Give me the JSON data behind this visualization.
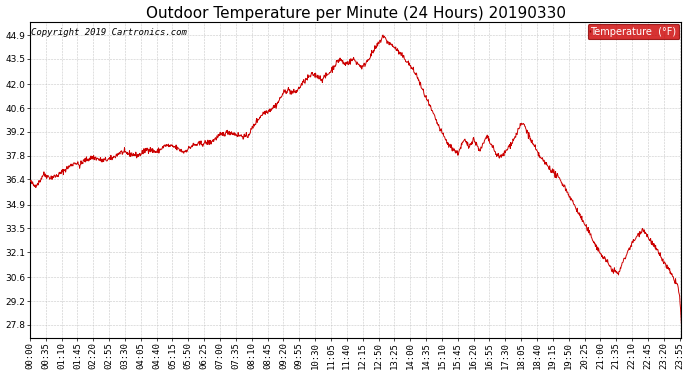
{
  "title": "Outdoor Temperature per Minute (24 Hours) 20190330",
  "copyright_text": "Copyright 2019 Cartronics.com",
  "legend_label": "Temperature  (°F)",
  "legend_bg": "#cc0000",
  "legend_text_color": "#ffffff",
  "line_color": "#cc0000",
  "background_color": "#ffffff",
  "grid_color": "#bbbbbb",
  "yticks": [
    27.8,
    29.2,
    30.6,
    32.1,
    33.5,
    34.9,
    36.4,
    37.8,
    39.2,
    40.6,
    42.0,
    43.5,
    44.9
  ],
  "ylim": [
    27.0,
    45.7
  ],
  "title_fontsize": 11,
  "tick_fontsize": 6.5,
  "copyright_fontsize": 6.5,
  "waypoints": [
    [
      0,
      36.3
    ],
    [
      10,
      36.0
    ],
    [
      20,
      36.2
    ],
    [
      30,
      36.7
    ],
    [
      45,
      36.5
    ],
    [
      60,
      36.6
    ],
    [
      80,
      37.0
    ],
    [
      100,
      37.4
    ],
    [
      110,
      37.2
    ],
    [
      120,
      37.5
    ],
    [
      140,
      37.7
    ],
    [
      160,
      37.5
    ],
    [
      180,
      37.6
    ],
    [
      200,
      38.0
    ],
    [
      220,
      37.9
    ],
    [
      240,
      37.8
    ],
    [
      260,
      38.2
    ],
    [
      280,
      38.0
    ],
    [
      300,
      38.4
    ],
    [
      320,
      38.3
    ],
    [
      340,
      38.0
    ],
    [
      360,
      38.4
    ],
    [
      380,
      38.5
    ],
    [
      400,
      38.6
    ],
    [
      420,
      39.0
    ],
    [
      440,
      39.2
    ],
    [
      460,
      39.0
    ],
    [
      480,
      38.9
    ],
    [
      500,
      39.8
    ],
    [
      515,
      40.3
    ],
    [
      530,
      40.5
    ],
    [
      545,
      40.8
    ],
    [
      560,
      41.5
    ],
    [
      570,
      41.7
    ],
    [
      580,
      41.5
    ],
    [
      590,
      41.6
    ],
    [
      600,
      42.0
    ],
    [
      615,
      42.4
    ],
    [
      625,
      42.6
    ],
    [
      635,
      42.5
    ],
    [
      645,
      42.3
    ],
    [
      655,
      42.5
    ],
    [
      665,
      42.8
    ],
    [
      675,
      43.2
    ],
    [
      685,
      43.5
    ],
    [
      695,
      43.2
    ],
    [
      705,
      43.3
    ],
    [
      715,
      43.5
    ],
    [
      725,
      43.2
    ],
    [
      735,
      43.0
    ],
    [
      745,
      43.4
    ],
    [
      755,
      43.8
    ],
    [
      765,
      44.2
    ],
    [
      775,
      44.6
    ],
    [
      780,
      44.9
    ],
    [
      787,
      44.6
    ],
    [
      795,
      44.4
    ],
    [
      805,
      44.2
    ],
    [
      815,
      43.9
    ],
    [
      825,
      43.6
    ],
    [
      835,
      43.3
    ],
    [
      845,
      42.9
    ],
    [
      855,
      42.5
    ],
    [
      865,
      41.8
    ],
    [
      875,
      41.2
    ],
    [
      885,
      40.6
    ],
    [
      895,
      40.0
    ],
    [
      905,
      39.4
    ],
    [
      915,
      38.9
    ],
    [
      925,
      38.4
    ],
    [
      935,
      38.2
    ],
    [
      945,
      37.9
    ],
    [
      950,
      38.2
    ],
    [
      955,
      38.5
    ],
    [
      960,
      38.7
    ],
    [
      965,
      38.5
    ],
    [
      970,
      38.3
    ],
    [
      975,
      38.6
    ],
    [
      980,
      38.8
    ],
    [
      985,
      38.5
    ],
    [
      990,
      38.3
    ],
    [
      995,
      38.1
    ],
    [
      1000,
      38.4
    ],
    [
      1005,
      38.7
    ],
    [
      1010,
      38.9
    ],
    [
      1015,
      38.6
    ],
    [
      1020,
      38.4
    ],
    [
      1025,
      38.1
    ],
    [
      1030,
      37.9
    ],
    [
      1040,
      37.7
    ],
    [
      1050,
      38.0
    ],
    [
      1060,
      38.4
    ],
    [
      1070,
      38.8
    ],
    [
      1075,
      39.1
    ],
    [
      1080,
      39.4
    ],
    [
      1085,
      39.6
    ],
    [
      1090,
      39.7
    ],
    [
      1095,
      39.4
    ],
    [
      1100,
      39.1
    ],
    [
      1105,
      38.8
    ],
    [
      1110,
      38.5
    ],
    [
      1115,
      38.3
    ],
    [
      1120,
      38.0
    ],
    [
      1125,
      37.8
    ],
    [
      1130,
      37.6
    ],
    [
      1140,
      37.3
    ],
    [
      1150,
      37.0
    ],
    [
      1160,
      36.7
    ],
    [
      1170,
      36.4
    ],
    [
      1180,
      36.0
    ],
    [
      1190,
      35.5
    ],
    [
      1200,
      35.0
    ],
    [
      1210,
      34.5
    ],
    [
      1220,
      34.0
    ],
    [
      1230,
      33.5
    ],
    [
      1240,
      33.0
    ],
    [
      1250,
      32.5
    ],
    [
      1260,
      32.0
    ],
    [
      1270,
      31.7
    ],
    [
      1275,
      31.5
    ],
    [
      1280,
      31.3
    ],
    [
      1285,
      31.1
    ],
    [
      1290,
      31.0
    ],
    [
      1300,
      30.8
    ],
    [
      1305,
      31.2
    ],
    [
      1315,
      31.8
    ],
    [
      1325,
      32.4
    ],
    [
      1340,
      33.0
    ],
    [
      1355,
      33.5
    ],
    [
      1360,
      33.2
    ],
    [
      1370,
      32.8
    ],
    [
      1380,
      32.4
    ],
    [
      1390,
      32.0
    ],
    [
      1400,
      31.5
    ],
    [
      1410,
      31.1
    ],
    [
      1420,
      30.6
    ],
    [
      1430,
      30.2
    ],
    [
      1435,
      29.5
    ],
    [
      1439,
      27.8
    ]
  ]
}
